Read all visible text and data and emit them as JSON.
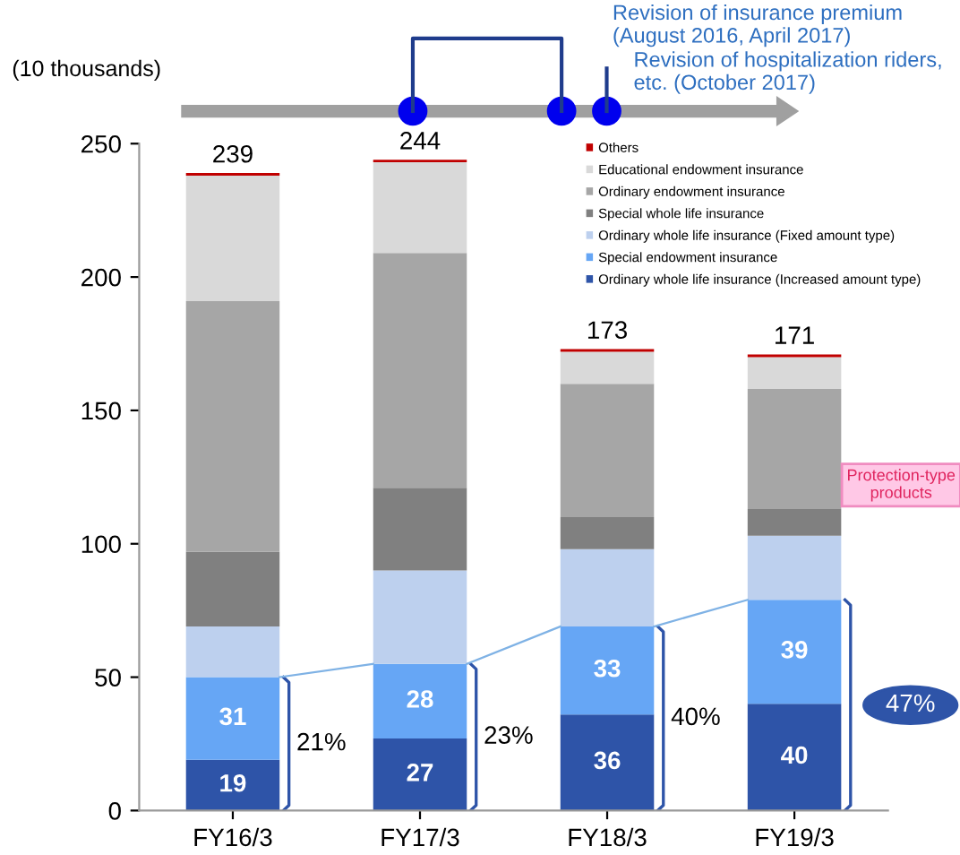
{
  "chart_data": {
    "type": "bar",
    "stacked": true,
    "ylabel": "(10 thousands)",
    "categories": [
      "FY16/3",
      "FY17/3",
      "FY18/3",
      "FY19/3"
    ],
    "series": [
      {
        "name": "Ordinary whole life insurance (Increased amount type)",
        "color": "#2e54a8",
        "values": [
          19,
          27,
          36,
          40
        ],
        "value_labels": [
          "19",
          "27",
          "36",
          "40"
        ]
      },
      {
        "name": "Special endowment insurance",
        "color": "#66a6f5",
        "values": [
          31,
          28,
          33,
          39
        ],
        "value_labels": [
          "31",
          "28",
          "33",
          "39"
        ]
      },
      {
        "name": "Ordinary whole life insurance (Fixed amount type)",
        "color": "#bdd0ee",
        "values": [
          19,
          35,
          29,
          24
        ]
      },
      {
        "name": "Special whole life insurance",
        "color": "#808080",
        "values": [
          28,
          31,
          12,
          10
        ]
      },
      {
        "name": "Ordinary endowment insurance",
        "color": "#a6a6a6",
        "values": [
          94,
          88,
          50,
          45
        ]
      },
      {
        "name": "Educational endowment insurance",
        "color": "#d9d9d9",
        "values": [
          47,
          34,
          12,
          12
        ]
      },
      {
        "name": "Others",
        "color": "#c00000",
        "values": [
          1,
          1,
          1,
          1
        ]
      }
    ],
    "totals": [
      "239",
      "244",
      "173",
      "171"
    ],
    "ylim": [
      0,
      250
    ],
    "yticks": [
      0,
      50,
      100,
      150,
      200,
      250
    ],
    "grid": false,
    "legend": "top right",
    "annotations": [
      "21%",
      "23%",
      "40%",
      "47%",
      "Protection-type products",
      "Revision of insurance premium (August 2016, April 2017)",
      "Revision of hospitalization riders, etc. (October 2017)"
    ]
  }
}
